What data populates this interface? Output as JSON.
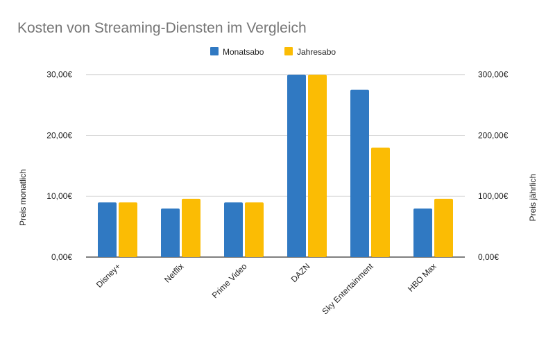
{
  "chart_data": {
    "type": "bar",
    "title": "Kosten von Streaming-Diensten im Vergleich",
    "categories": [
      "Disney+",
      "Netflix",
      "Prime Video",
      "DAZN",
      "Sky Entertainment",
      "HBO Max"
    ],
    "series": [
      {
        "name": "Monatsabo",
        "axis": "left",
        "color": "#3079c2",
        "values": [
          8.99,
          7.99,
          8.99,
          29.99,
          27.5,
          7.99
        ]
      },
      {
        "name": "Jahresabo",
        "axis": "right",
        "color": "#fbbc04",
        "values": [
          89.9,
          95.88,
          89.9,
          299.99,
          180,
          95.88
        ]
      }
    ],
    "ylabel_left": "Preis monatlich",
    "ylabel_right": "Preis jährlich",
    "ylim_left": [
      0,
      30
    ],
    "ylim_right": [
      0,
      300
    ],
    "yticks_left": [
      "0,00€",
      "10,00€",
      "20,00€",
      "30,00€"
    ],
    "yticks_right": [
      "0,00€",
      "100,00€",
      "200,00€",
      "300,00€"
    ],
    "grid": true,
    "legend": "top"
  }
}
